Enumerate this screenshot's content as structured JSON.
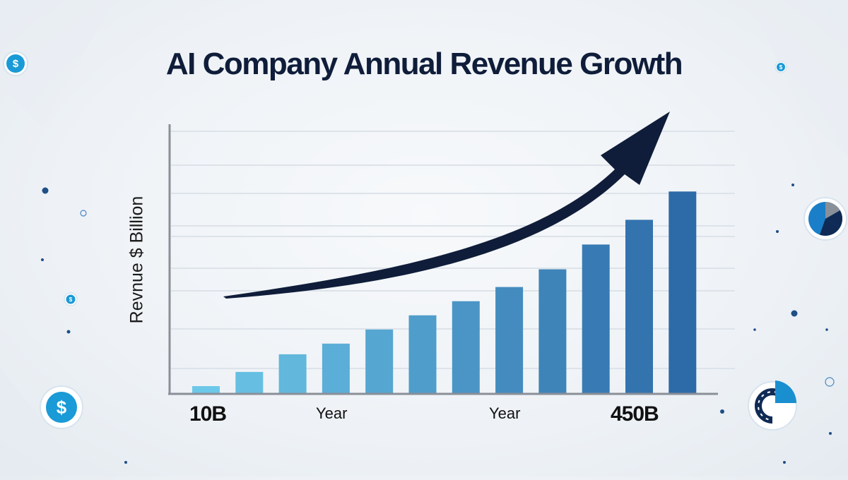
{
  "chart_data": {
    "type": "bar",
    "title": "AI Company Annual Revenue Growth",
    "ylabel": "Revnue $ Billion",
    "x_axis_labels": [
      "10B",
      "Year",
      "Year",
      "450B"
    ],
    "series": [
      {
        "values": [
          10,
          30,
          55,
          70,
          90,
          110,
          130,
          150,
          175,
          210,
          245,
          285
        ]
      }
    ],
    "ylim": [
      0,
      380
    ],
    "grid": true,
    "trend_arrow": true,
    "colors": {
      "bar_start": "#6cc8e8",
      "bar_end": "#2d6aa8",
      "arrow": "#0f1d3a",
      "axis": "#8a8f98",
      "grid": "#dde3ea"
    }
  },
  "decorations": {
    "icons": [
      "dollar-coin-icon",
      "pie-chart-icon",
      "donut-chart-icon"
    ]
  }
}
